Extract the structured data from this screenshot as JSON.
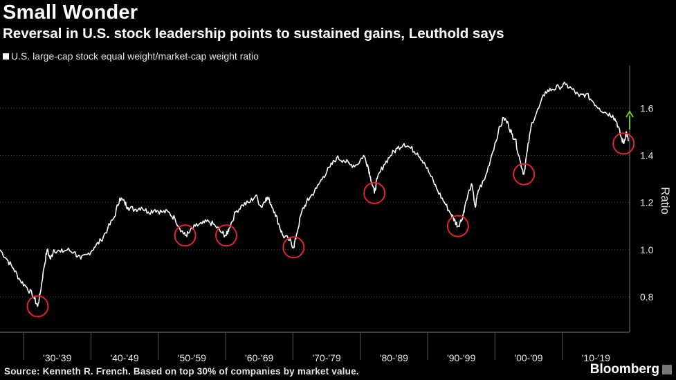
{
  "header": {
    "title": "Small Wonder",
    "subtitle": "Reversal in U.S. stock leadership points to sustained gains, Leuthold says"
  },
  "legend": {
    "label": "U.S. large-cap stock equal weight/market-cap weight ratio"
  },
  "footer": {
    "source": "Source: Kenneth R. French. Based on top 30% of companies by market value.",
    "brand": "Bloomberg"
  },
  "colors": {
    "line": "#ffffff",
    "circle": "#e3242b",
    "arrow": "#6fcf1e",
    "background": "#000000"
  },
  "chart_data": {
    "type": "line",
    "title": "Small Wonder",
    "subtitle": "Reversal in U.S. stock leadership points to sustained gains, Leuthold says",
    "ylabel": "Ratio",
    "xlabel": "",
    "ylim": [
      0.65,
      1.78
    ],
    "xlim": [
      1926.0,
      2019.5
    ],
    "y_ticks": [
      0.8,
      1.0,
      1.2,
      1.4,
      1.6
    ],
    "y_tick_labels": [
      "0.8",
      "1.0",
      "1.2",
      "1.4",
      "1.6"
    ],
    "x_decade_boundaries": [
      1929.5,
      1939.5,
      1949.5,
      1959.5,
      1969.5,
      1979.5,
      1989.5,
      1999.5,
      2009.5
    ],
    "x_tick_labels": [
      {
        "label": "'30-'39",
        "center": 1934.5
      },
      {
        "label": "'40-'49",
        "center": 1944.5
      },
      {
        "label": "'50-'59",
        "center": 1954.5
      },
      {
        "label": "'60-'69",
        "center": 1964.5
      },
      {
        "label": "'70-'79",
        "center": 1974.5
      },
      {
        "label": "'80-'89",
        "center": 1984.5
      },
      {
        "label": "'90-'99",
        "center": 1994.5
      },
      {
        "label": "'00-'09",
        "center": 2004.5
      },
      {
        "label": "'10-'19",
        "center": 2014.5
      }
    ],
    "series": [
      {
        "name": "U.S. large-cap stock equal weight/market-cap weight ratio",
        "points": [
          [
            1926.0,
            1.0
          ],
          [
            1927.0,
            0.96
          ],
          [
            1928.0,
            0.92
          ],
          [
            1929.0,
            0.87
          ],
          [
            1930.0,
            0.84
          ],
          [
            1931.0,
            0.8
          ],
          [
            1931.6,
            0.76
          ],
          [
            1932.0,
            0.82
          ],
          [
            1932.5,
            0.92
          ],
          [
            1933.0,
            1.0
          ],
          [
            1933.5,
            0.96
          ],
          [
            1934.0,
            1.0
          ],
          [
            1935.0,
            0.99
          ],
          [
            1936.0,
            1.0
          ],
          [
            1937.0,
            0.99
          ],
          [
            1938.0,
            0.96
          ],
          [
            1939.0,
            0.98
          ],
          [
            1940.0,
            1.01
          ],
          [
            1941.0,
            1.04
          ],
          [
            1942.0,
            1.09
          ],
          [
            1943.0,
            1.14
          ],
          [
            1943.8,
            1.22
          ],
          [
            1944.5,
            1.2
          ],
          [
            1945.0,
            1.18
          ],
          [
            1946.0,
            1.17
          ],
          [
            1947.0,
            1.18
          ],
          [
            1948.0,
            1.16
          ],
          [
            1949.0,
            1.17
          ],
          [
            1950.0,
            1.16
          ],
          [
            1951.0,
            1.16
          ],
          [
            1952.0,
            1.13
          ],
          [
            1953.0,
            1.08
          ],
          [
            1953.5,
            1.06
          ],
          [
            1954.0,
            1.07
          ],
          [
            1955.0,
            1.1
          ],
          [
            1956.0,
            1.11
          ],
          [
            1957.0,
            1.12
          ],
          [
            1958.0,
            1.1
          ],
          [
            1959.0,
            1.07
          ],
          [
            1959.6,
            1.06
          ],
          [
            1960.0,
            1.09
          ],
          [
            1961.0,
            1.16
          ],
          [
            1962.0,
            1.19
          ],
          [
            1963.0,
            1.2
          ],
          [
            1964.0,
            1.23
          ],
          [
            1964.8,
            1.18
          ],
          [
            1965.5,
            1.22
          ],
          [
            1966.0,
            1.21
          ],
          [
            1966.8,
            1.16
          ],
          [
            1967.5,
            1.1
          ],
          [
            1968.0,
            1.06
          ],
          [
            1969.0,
            1.04
          ],
          [
            1969.6,
            1.01
          ],
          [
            1970.0,
            1.06
          ],
          [
            1970.8,
            1.16
          ],
          [
            1971.5,
            1.2
          ],
          [
            1972.0,
            1.22
          ],
          [
            1973.0,
            1.26
          ],
          [
            1974.0,
            1.31
          ],
          [
            1975.0,
            1.35
          ],
          [
            1976.0,
            1.39
          ],
          [
            1977.0,
            1.38
          ],
          [
            1978.0,
            1.36
          ],
          [
            1979.0,
            1.36
          ],
          [
            1980.0,
            1.4
          ],
          [
            1980.6,
            1.36
          ],
          [
            1981.0,
            1.31
          ],
          [
            1981.6,
            1.24
          ],
          [
            1982.0,
            1.3
          ],
          [
            1983.0,
            1.36
          ],
          [
            1984.0,
            1.4
          ],
          [
            1985.0,
            1.43
          ],
          [
            1986.0,
            1.45
          ],
          [
            1987.0,
            1.43
          ],
          [
            1988.0,
            1.41
          ],
          [
            1989.0,
            1.37
          ],
          [
            1990.0,
            1.31
          ],
          [
            1991.0,
            1.25
          ],
          [
            1992.0,
            1.2
          ],
          [
            1993.0,
            1.15
          ],
          [
            1993.6,
            1.12
          ],
          [
            1994.0,
            1.1
          ],
          [
            1994.6,
            1.13
          ],
          [
            1995.0,
            1.18
          ],
          [
            1996.0,
            1.28
          ],
          [
            1996.6,
            1.18
          ],
          [
            1997.0,
            1.25
          ],
          [
            1998.0,
            1.3
          ],
          [
            1999.0,
            1.4
          ],
          [
            2000.0,
            1.5
          ],
          [
            2000.8,
            1.56
          ],
          [
            2001.5,
            1.53
          ],
          [
            2002.0,
            1.49
          ],
          [
            2002.5,
            1.47
          ],
          [
            2003.2,
            1.38
          ],
          [
            2003.8,
            1.32
          ],
          [
            2004.3,
            1.42
          ],
          [
            2005.0,
            1.54
          ],
          [
            2006.0,
            1.6
          ],
          [
            2007.0,
            1.67
          ],
          [
            2008.0,
            1.68
          ],
          [
            2009.0,
            1.69
          ],
          [
            2010.0,
            1.7
          ],
          [
            2011.0,
            1.68
          ],
          [
            2012.0,
            1.65
          ],
          [
            2013.0,
            1.66
          ],
          [
            2014.0,
            1.63
          ],
          [
            2015.0,
            1.6
          ],
          [
            2016.0,
            1.58
          ],
          [
            2017.0,
            1.57
          ],
          [
            2017.6,
            1.54
          ],
          [
            2018.2,
            1.48
          ],
          [
            2018.6,
            1.45
          ],
          [
            2019.0,
            1.5
          ],
          [
            2019.3,
            1.46
          ]
        ]
      }
    ],
    "annotations": {
      "circled_lows": [
        [
          1931.6,
          0.76
        ],
        [
          1953.5,
          1.06
        ],
        [
          1959.6,
          1.06
        ],
        [
          1969.6,
          1.01
        ],
        [
          1981.6,
          1.24
        ],
        [
          1994.0,
          1.1
        ],
        [
          2003.8,
          1.32
        ],
        [
          2018.6,
          1.45
        ]
      ],
      "arrow": {
        "from": [
          2019.3,
          1.51
        ],
        "to": [
          2019.3,
          1.58
        ],
        "label": ""
      }
    }
  }
}
